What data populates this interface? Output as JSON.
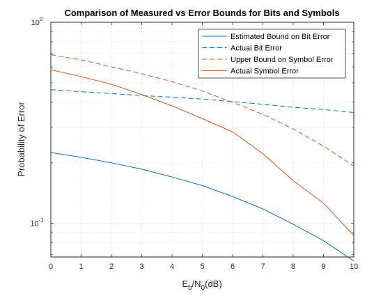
{
  "chart_data": {
    "type": "line",
    "title": "Comparison of Measured vs Error Bounds for Bits and Symbols",
    "xlabel": {
      "base": "E",
      "sub1": "b",
      "mid": "/N",
      "sub2": "0",
      "tail": "(dB)"
    },
    "ylabel": "Probability of Error",
    "xlim": [
      0,
      10
    ],
    "ylim": [
      0.068,
      1.0
    ],
    "yscale": "log",
    "grid": "on",
    "x_ticks": [
      "0",
      "1",
      "2",
      "3",
      "4",
      "5",
      "6",
      "7",
      "8",
      "9",
      "10"
    ],
    "y_ticks": [
      {
        "value": 0.1,
        "base": "10",
        "exp": "-1"
      },
      {
        "value": 1.0,
        "base": "10",
        "exp": "0"
      }
    ],
    "legend_position": "top-right",
    "x": [
      0,
      1,
      2,
      3,
      4,
      5,
      6,
      7,
      8,
      9,
      10
    ],
    "series": [
      {
        "name": "Estimated Bound on Bit Error",
        "color": "#0072BD",
        "dash": "solid",
        "values": [
          0.225,
          0.213,
          0.2,
          0.186,
          0.17,
          0.154,
          0.136,
          0.118,
          0.099,
          0.082,
          0.065
        ]
      },
      {
        "name": "Actual Bit Error",
        "color": "#0072BD",
        "dash": "dashed",
        "values": [
          0.462,
          0.452,
          0.442,
          0.432,
          0.424,
          0.415,
          0.403,
          0.391,
          0.378,
          0.368,
          0.356
        ]
      },
      {
        "name": "Upper Bound on Symbol Error",
        "color": "#D95319",
        "dash": "dashed",
        "values": [
          0.69,
          0.65,
          0.6,
          0.555,
          0.507,
          0.455,
          0.4,
          0.348,
          0.295,
          0.242,
          0.193
        ]
      },
      {
        "name": "Actual Symbol Error",
        "color": "#D95319",
        "dash": "solid",
        "values": [
          0.58,
          0.537,
          0.492,
          0.437,
          0.384,
          0.332,
          0.285,
          0.222,
          0.163,
          0.126,
          0.087
        ]
      }
    ]
  }
}
